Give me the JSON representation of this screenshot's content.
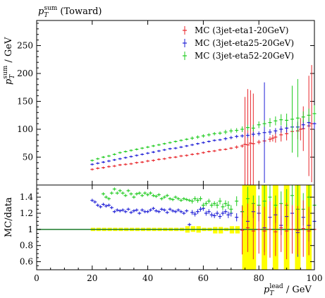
{
  "chart_data": [
    {
      "type": "scatter",
      "title": "p_T^sum (Toward)",
      "title_parts": {
        "main": "p",
        "sub": "T",
        "sup": "sum",
        "rest": " (Toward)"
      },
      "ylabel_parts": {
        "main": "p",
        "sub": "T",
        "sup": "sum",
        "rest": " / GeV"
      },
      "xlim": [
        0,
        100
      ],
      "ylim": [
        0,
        295
      ],
      "yticks": [
        50,
        100,
        150,
        200,
        250
      ],
      "legend_position": "top-right",
      "series": [
        {
          "name": "MC (3jet-eta1-20GeV)",
          "color": "#e8262b",
          "x": [
            20,
            22,
            24,
            26,
            28,
            30,
            32,
            34,
            36,
            38,
            40,
            42,
            44,
            46,
            48,
            50,
            52,
            54,
            56,
            58,
            60,
            62,
            64,
            66,
            68,
            70,
            72,
            74,
            75,
            76,
            77,
            78,
            80,
            82,
            84,
            85,
            86,
            88,
            90,
            92,
            94,
            95,
            96,
            98,
            99
          ],
          "y": [
            28,
            30,
            31,
            33,
            34,
            36,
            37,
            38,
            40,
            41,
            43,
            44,
            46,
            47,
            49,
            50,
            52,
            53,
            55,
            56,
            58,
            60,
            61,
            63,
            64,
            66,
            68,
            70,
            73,
            72,
            75,
            74,
            77,
            79,
            82,
            84,
            86,
            90,
            92,
            96,
            97,
            100,
            101,
            106,
            110
          ],
          "err": [
            2,
            2,
            2,
            2,
            2,
            2,
            2,
            2,
            2,
            2,
            2,
            2,
            2,
            2,
            2,
            2,
            2,
            2,
            2,
            2,
            2,
            2,
            2,
            2,
            2,
            2,
            3,
            3,
            85,
            100,
            95,
            90,
            4,
            5,
            5,
            6,
            10,
            12,
            12,
            10,
            15,
            20,
            40,
            90,
            105
          ]
        },
        {
          "name": "MC (3jet-eta25-20GeV)",
          "color": "#1f1fd6",
          "x": [
            20,
            22,
            24,
            26,
            28,
            30,
            32,
            34,
            36,
            38,
            40,
            42,
            44,
            46,
            48,
            50,
            52,
            54,
            56,
            58,
            60,
            62,
            64,
            66,
            68,
            70,
            72,
            74,
            76,
            78,
            80,
            82,
            84,
            86,
            88,
            90,
            92,
            94,
            96,
            98,
            100
          ],
          "y": [
            37,
            39,
            41,
            43,
            45,
            47,
            49,
            51,
            53,
            55,
            57,
            59,
            61,
            63,
            65,
            66,
            68,
            70,
            72,
            74,
            76,
            78,
            80,
            81,
            83,
            85,
            87,
            88,
            89,
            91,
            92,
            94,
            95,
            97,
            100,
            102,
            104,
            104,
            108,
            112,
            110
          ],
          "err": [
            2,
            2,
            2,
            2,
            2,
            2,
            2,
            2,
            2,
            2,
            2,
            2,
            2,
            2,
            2,
            2,
            2,
            2,
            2,
            2,
            2,
            2,
            2,
            2,
            3,
            3,
            3,
            3,
            4,
            4,
            4,
            90,
            5,
            5,
            6,
            8,
            6,
            10,
            8,
            8,
            10
          ]
        },
        {
          "name": "MC (3jet-eta52-20GeV)",
          "color": "#22cc22",
          "x": [
            20,
            22,
            24,
            26,
            28,
            30,
            32,
            34,
            36,
            38,
            40,
            42,
            44,
            46,
            48,
            50,
            52,
            54,
            56,
            58,
            60,
            62,
            64,
            66,
            68,
            70,
            72,
            74,
            76,
            78,
            80,
            82,
            84,
            86,
            88,
            90,
            92,
            94,
            96,
            98,
            100
          ],
          "y": [
            44,
            47,
            50,
            52,
            55,
            58,
            60,
            62,
            64,
            66,
            68,
            70,
            72,
            74,
            76,
            78,
            80,
            82,
            84,
            86,
            88,
            90,
            92,
            93,
            95,
            97,
            98,
            100,
            103,
            102,
            108,
            110,
            112,
            115,
            117,
            116,
            118,
            120,
            122,
            125,
            128
          ],
          "err": [
            2,
            2,
            2,
            2,
            2,
            2,
            2,
            2,
            2,
            2,
            2,
            2,
            2,
            2,
            2,
            2,
            2,
            2,
            3,
            3,
            3,
            3,
            3,
            3,
            4,
            4,
            4,
            5,
            5,
            6,
            6,
            6,
            8,
            8,
            10,
            12,
            60,
            70,
            10,
            12,
            15
          ]
        }
      ]
    },
    {
      "type": "scatter",
      "ylabel": "MC/data",
      "xlabel_parts": {
        "main": "p",
        "sub": "T",
        "sup": "lead",
        "rest": " / GeV"
      },
      "xlim": [
        0,
        100
      ],
      "ylim": [
        0.5,
        1.55
      ],
      "yticks": [
        0.6,
        0.8,
        1,
        1.2,
        1.4
      ],
      "xticks": [
        0,
        20,
        40,
        60,
        80,
        100
      ],
      "reference_line": 1.0,
      "series": [
        {
          "name": "MC (3jet-eta25-20GeV)",
          "color": "#1f1fd6",
          "x": [
            20,
            21,
            22,
            23,
            24,
            25,
            26,
            27,
            28,
            29,
            30,
            31,
            32,
            33,
            34,
            35,
            36,
            37,
            38,
            39,
            40,
            41,
            42,
            43,
            44,
            45,
            46,
            47,
            48,
            49,
            50,
            51,
            52,
            53,
            54,
            55,
            56,
            57,
            58,
            59,
            60,
            61,
            62,
            63,
            64,
            65,
            66,
            67,
            68,
            69,
            70,
            72,
            74,
            76,
            78,
            80,
            82,
            84,
            86,
            88,
            90,
            92,
            94,
            96,
            98,
            100
          ],
          "y": [
            1.36,
            1.34,
            1.3,
            1.28,
            1.31,
            1.29,
            1.3,
            1.27,
            1.22,
            1.24,
            1.23,
            1.24,
            1.22,
            1.25,
            1.21,
            1.23,
            1.24,
            1.2,
            1.24,
            1.22,
            1.22,
            1.24,
            1.26,
            1.23,
            1.22,
            1.25,
            1.24,
            1.21,
            1.25,
            1.23,
            1.22,
            1.24,
            1.22,
            1.2,
            1.23,
            1.06,
            1.21,
            1.19,
            1.22,
            1.25,
            1.26,
            1.2,
            1.22,
            1.18,
            1.17,
            1.2,
            1.16,
            1.2,
            1.22,
            1.18,
            1.2,
            1.15,
            1.22,
            1.1,
            1.22,
            1.2,
            1.02,
            1.15,
            1.18,
            1.05,
            1.16,
            1.2,
            0.96,
            1.15,
            1.05,
            1.1
          ],
          "err": [
            0.02,
            0.02,
            0.02,
            0.02,
            0.02,
            0.02,
            0.02,
            0.02,
            0.02,
            0.02,
            0.02,
            0.02,
            0.02,
            0.02,
            0.02,
            0.02,
            0.02,
            0.02,
            0.02,
            0.02,
            0.02,
            0.02,
            0.02,
            0.02,
            0.02,
            0.02,
            0.02,
            0.02,
            0.02,
            0.02,
            0.02,
            0.02,
            0.02,
            0.02,
            0.02,
            0.02,
            0.03,
            0.03,
            0.03,
            0.03,
            0.03,
            0.03,
            0.03,
            0.03,
            0.03,
            0.03,
            0.03,
            0.03,
            0.03,
            0.04,
            0.04,
            0.05,
            0.06,
            0.07,
            0.08,
            0.1,
            0.3,
            0.1,
            0.1,
            0.12,
            0.12,
            0.15,
            0.3,
            0.1,
            0.2,
            0.15
          ]
        },
        {
          "name": "MC (3jet-eta52-20GeV)",
          "color": "#22cc22",
          "x": [
            24,
            25,
            26,
            27,
            28,
            29,
            30,
            31,
            32,
            33,
            34,
            35,
            36,
            37,
            38,
            39,
            40,
            41,
            42,
            43,
            44,
            45,
            46,
            47,
            48,
            49,
            50,
            51,
            52,
            53,
            54,
            55,
            56,
            57,
            58,
            59,
            60,
            61,
            62,
            63,
            64,
            65,
            66,
            67,
            68,
            69,
            70,
            72,
            74,
            76,
            78,
            80,
            82,
            84,
            86,
            88,
            90,
            92,
            94,
            96,
            98,
            100
          ],
          "y": [
            1.44,
            1.4,
            1.38,
            1.45,
            1.5,
            1.45,
            1.48,
            1.45,
            1.42,
            1.48,
            1.44,
            1.4,
            1.44,
            1.45,
            1.42,
            1.45,
            1.43,
            1.45,
            1.42,
            1.41,
            1.43,
            1.38,
            1.4,
            1.42,
            1.38,
            1.37,
            1.4,
            1.38,
            1.36,
            1.38,
            1.37,
            1.36,
            1.35,
            1.38,
            1.36,
            1.38,
            1.3,
            1.32,
            1.35,
            1.3,
            1.32,
            1.3,
            1.35,
            1.28,
            1.32,
            1.3,
            1.25,
            1.35,
            1.22,
            1.38,
            1.32,
            1.3,
            1.35,
            1.4,
            1.3,
            1.32,
            1.3,
            1.42,
            1.25,
            1.25,
            1.4,
            1.3
          ],
          "err": [
            0.02,
            0.02,
            0.02,
            0.02,
            0.02,
            0.02,
            0.02,
            0.02,
            0.02,
            0.02,
            0.02,
            0.02,
            0.02,
            0.02,
            0.02,
            0.02,
            0.02,
            0.02,
            0.02,
            0.02,
            0.02,
            0.02,
            0.02,
            0.02,
            0.02,
            0.02,
            0.02,
            0.02,
            0.02,
            0.02,
            0.02,
            0.02,
            0.03,
            0.03,
            0.03,
            0.03,
            0.03,
            0.03,
            0.03,
            0.03,
            0.03,
            0.04,
            0.04,
            0.04,
            0.04,
            0.05,
            0.05,
            0.06,
            0.08,
            0.15,
            0.1,
            0.12,
            0.3,
            0.15,
            0.12,
            0.15,
            0.2,
            0.2,
            0.35,
            0.2,
            0.25,
            0.25
          ]
        },
        {
          "name": "MC (3jet-eta1-20GeV)",
          "color": "#e8262b",
          "x": [
            74,
            76,
            78,
            80,
            82,
            84,
            86,
            88,
            90,
            92,
            94,
            96,
            98,
            100
          ],
          "y": [
            0.99,
            1.02,
            0.98,
            1.0,
            0.98,
            1.0,
            0.97,
            1.02,
            0.98,
            1.0,
            0.99,
            1.01,
            0.98,
            1.0
          ],
          "err": [
            0.3,
            0.3,
            0.35,
            0.3,
            0.3,
            0.35,
            0.3,
            0.3,
            0.35,
            0.3,
            0.3,
            0.35,
            0.3,
            0.3
          ]
        }
      ]
    }
  ]
}
